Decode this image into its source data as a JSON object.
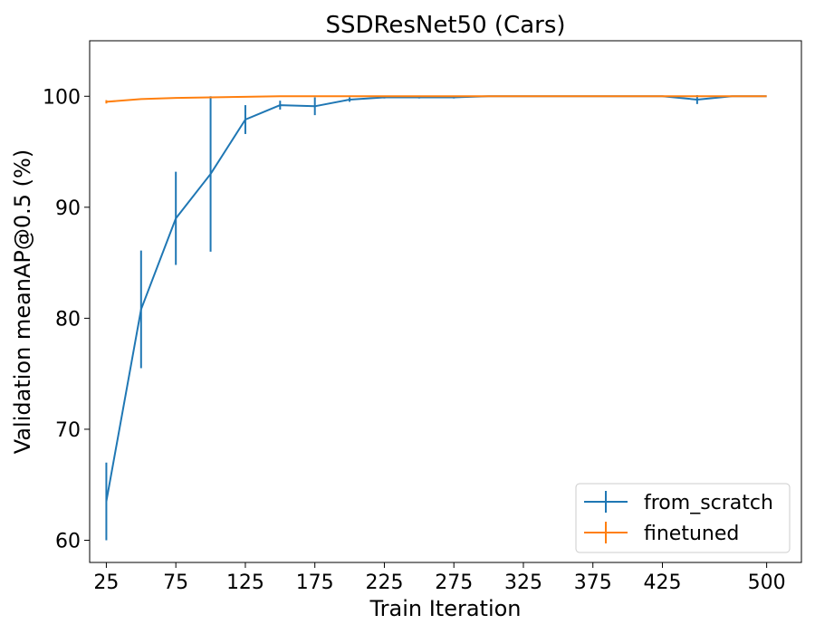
{
  "chart_data": {
    "type": "line",
    "title": "SSDResNet50 (Cars)",
    "xlabel": "Train Iteration",
    "ylabel": "Validation meanAP@0.5 (%)",
    "xlim": [
      13,
      525
    ],
    "ylim": [
      58,
      105
    ],
    "xticks": [
      25,
      75,
      125,
      175,
      225,
      275,
      325,
      375,
      425,
      500
    ],
    "yticks": [
      60,
      70,
      80,
      90,
      100
    ],
    "grid": false,
    "legend_position": "lower-right",
    "series": [
      {
        "name": "from_scratch",
        "color": "#1f77b4",
        "x": [
          25,
          50,
          75,
          100,
          125,
          150,
          175,
          200,
          225,
          250,
          275,
          300,
          325,
          350,
          375,
          400,
          425,
          450,
          475,
          500
        ],
        "y": [
          63.5,
          80.8,
          89.0,
          93.0,
          97.9,
          99.2,
          99.1,
          99.7,
          99.9,
          99.9,
          99.9,
          100.0,
          100.0,
          100.0,
          100.0,
          100.0,
          100.0,
          99.7,
          100.0,
          100.0
        ],
        "err": [
          3.5,
          5.3,
          4.2,
          7.0,
          1.3,
          0.4,
          0.8,
          0.2,
          0.1,
          0.1,
          0.1,
          0.0,
          0.0,
          0.0,
          0.0,
          0.0,
          0.0,
          0.4,
          0.0,
          0.0
        ]
      },
      {
        "name": "finetuned",
        "color": "#ff7f0e",
        "x": [
          25,
          50,
          75,
          100,
          125,
          150,
          175,
          200,
          225,
          250,
          275,
          300,
          325,
          350,
          375,
          400,
          425,
          450,
          475,
          500
        ],
        "y": [
          99.5,
          99.75,
          99.85,
          99.9,
          99.95,
          100.0,
          100.0,
          100.0,
          100.0,
          100.0,
          100.0,
          100.0,
          100.0,
          100.0,
          100.0,
          100.0,
          100.0,
          100.0,
          100.0,
          100.0
        ],
        "err": [
          0.15,
          0.05,
          0.05,
          0.03,
          0.02,
          0,
          0,
          0,
          0,
          0,
          0,
          0,
          0,
          0,
          0,
          0,
          0,
          0,
          0,
          0
        ]
      }
    ]
  }
}
